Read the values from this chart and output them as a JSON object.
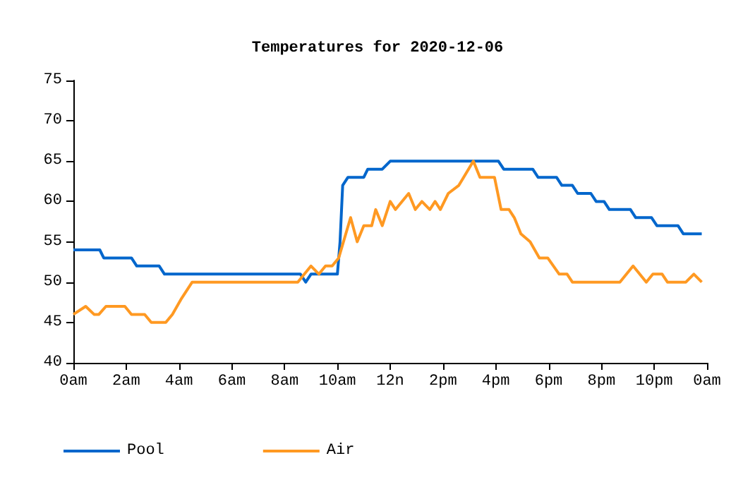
{
  "chart_data": {
    "type": "line",
    "title": "Temperatures for 2020-12-06",
    "legend": "bottom left",
    "grid": false,
    "marker": "none",
    "line_style": "solid",
    "xlim": [
      "2020-12-06T00:00",
      "2020-12-07T00:00"
    ],
    "xticks": [
      {
        "value": "2020-12-06T00:00",
        "label": "0am"
      },
      {
        "value": "2020-12-06T02:00",
        "label": "2am"
      },
      {
        "value": "2020-12-06T04:00",
        "label": "4am"
      },
      {
        "value": "2020-12-06T06:00",
        "label": "6am"
      },
      {
        "value": "2020-12-06T08:00",
        "label": "8am"
      },
      {
        "value": "2020-12-06T10:00",
        "label": "10am"
      },
      {
        "value": "2020-12-06T12:00",
        "label": "12n"
      },
      {
        "value": "2020-12-06T14:00",
        "label": "2pm"
      },
      {
        "value": "2020-12-06T16:00",
        "label": "4pm"
      },
      {
        "value": "2020-12-06T18:00",
        "label": "6pm"
      },
      {
        "value": "2020-12-06T20:00",
        "label": "8pm"
      },
      {
        "value": "2020-12-06T22:00",
        "label": "10pm"
      },
      {
        "value": "2020-12-07T00:00",
        "label": "0am"
      }
    ],
    "ylim": [
      40,
      75
    ],
    "yticks": [
      40,
      45,
      50,
      55,
      60,
      65,
      70,
      75
    ],
    "series": [
      {
        "name": "Pool",
        "color": "#0066cc",
        "x": [
          "2020-12-06T00:00",
          "2020-12-06T01:00",
          "2020-12-06T01:09",
          "2020-12-06T02:12",
          "2020-12-06T02:24",
          "2020-12-06T03:15",
          "2020-12-06T03:27",
          "2020-12-06T08:36",
          "2020-12-06T08:48",
          "2020-12-06T09:00",
          "2020-12-06T10:00",
          "2020-12-06T10:06",
          "2020-12-06T10:12",
          "2020-12-06T10:24",
          "2020-12-06T11:00",
          "2020-12-06T11:09",
          "2020-12-06T11:42",
          "2020-12-06T12:00",
          "2020-12-06T16:06",
          "2020-12-06T16:18",
          "2020-12-06T17:24",
          "2020-12-06T17:36",
          "2020-12-06T18:18",
          "2020-12-06T18:30",
          "2020-12-06T18:54",
          "2020-12-06T19:06",
          "2020-12-06T19:36",
          "2020-12-06T19:48",
          "2020-12-06T20:06",
          "2020-12-06T20:18",
          "2020-12-06T21:06",
          "2020-12-06T21:18",
          "2020-12-06T21:54",
          "2020-12-06T22:06",
          "2020-12-06T22:54",
          "2020-12-06T23:06",
          "2020-12-06T23:48"
        ],
        "values": [
          54,
          54,
          53,
          53,
          52,
          52,
          51,
          51,
          50,
          51,
          51,
          55,
          62,
          63,
          63,
          64,
          64,
          65,
          65,
          64,
          64,
          63,
          63,
          62,
          62,
          61,
          61,
          60,
          60,
          59,
          59,
          58,
          58,
          57,
          57,
          56,
          56
        ]
      },
      {
        "name": "Air",
        "color": "#ff9922",
        "x": [
          "2020-12-06T00:00",
          "2020-12-06T00:28",
          "2020-12-06T00:47",
          "2020-12-06T00:58",
          "2020-12-06T01:14",
          "2020-12-06T01:57",
          "2020-12-06T02:12",
          "2020-12-06T02:42",
          "2020-12-06T02:57",
          "2020-12-06T03:30",
          "2020-12-06T03:45",
          "2020-12-06T04:06",
          "2020-12-06T04:30",
          "2020-12-06T08:30",
          "2020-12-06T09:00",
          "2020-12-06T09:18",
          "2020-12-06T09:33",
          "2020-12-06T09:48",
          "2020-12-06T10:03",
          "2020-12-06T10:30",
          "2020-12-06T10:45",
          "2020-12-06T11:00",
          "2020-12-06T11:18",
          "2020-12-06T11:27",
          "2020-12-06T11:42",
          "2020-12-06T12:00",
          "2020-12-06T12:12",
          "2020-12-06T12:42",
          "2020-12-06T12:57",
          "2020-12-06T13:12",
          "2020-12-06T13:30",
          "2020-12-06T13:42",
          "2020-12-06T13:54",
          "2020-12-06T14:12",
          "2020-12-06T14:36",
          "2020-12-06T15:09",
          "2020-12-06T15:24",
          "2020-12-06T15:57",
          "2020-12-06T16:12",
          "2020-12-06T16:30",
          "2020-12-06T16:42",
          "2020-12-06T16:57",
          "2020-12-06T17:18",
          "2020-12-06T17:39",
          "2020-12-06T17:58",
          "2020-12-06T18:24",
          "2020-12-06T18:42",
          "2020-12-06T18:54",
          "2020-12-06T20:42",
          "2020-12-06T21:12",
          "2020-12-06T21:42",
          "2020-12-06T21:57",
          "2020-12-06T22:18",
          "2020-12-06T22:30",
          "2020-12-06T23:12",
          "2020-12-06T23:30",
          "2020-12-06T23:48"
        ],
        "values": [
          46,
          47,
          46,
          46,
          47,
          47,
          46,
          46,
          45,
          45,
          46,
          48,
          50,
          50,
          52,
          51,
          52,
          52,
          53,
          58,
          55,
          57,
          57,
          59,
          57,
          60,
          59,
          61,
          59,
          60,
          59,
          60,
          59,
          61,
          62,
          65,
          63,
          63,
          59,
          59,
          58,
          56,
          55,
          53,
          53,
          51,
          51,
          50,
          50,
          52,
          50,
          51,
          51,
          50,
          50,
          51,
          50
        ]
      }
    ]
  }
}
